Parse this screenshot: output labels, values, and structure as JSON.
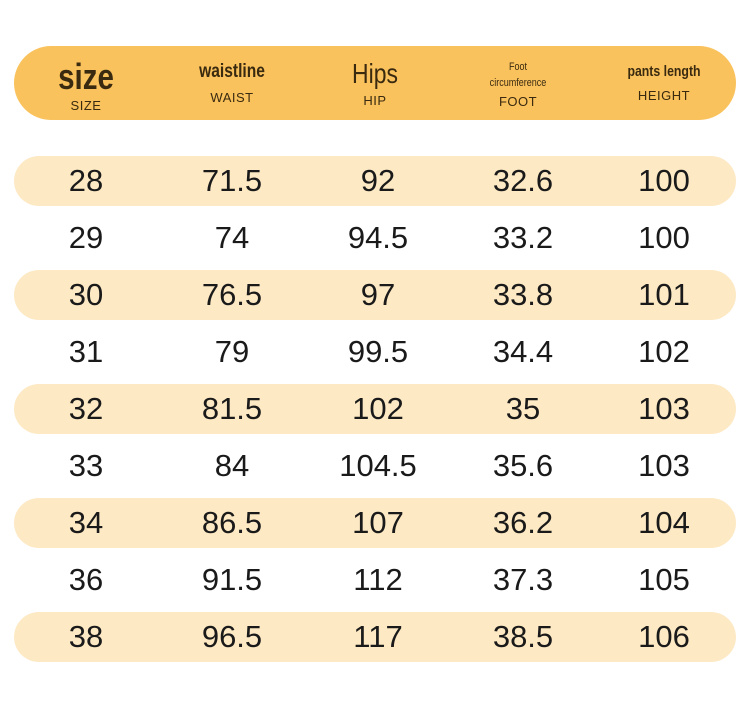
{
  "header": [
    {
      "main": "size",
      "sub": "SIZE"
    },
    {
      "main": "waistline",
      "sub": "WAIST"
    },
    {
      "main": "Hips",
      "sub": "HIP"
    },
    {
      "main_line1": "Foot",
      "main_line2": "circumference",
      "sub": "FOOT"
    },
    {
      "main": "pants length",
      "sub": "HEIGHT"
    }
  ],
  "rows": [
    [
      "28",
      "71.5",
      "92",
      "32.6",
      "100"
    ],
    [
      "29",
      "74",
      "94.5",
      "33.2",
      "100"
    ],
    [
      "30",
      "76.5",
      "97",
      "33.8",
      "101"
    ],
    [
      "31",
      "79",
      "99.5",
      "34.4",
      "102"
    ],
    [
      "32",
      "81.5",
      "102",
      "35",
      "103"
    ],
    [
      "33",
      "84",
      "104.5",
      "35.6",
      "103"
    ],
    [
      "34",
      "86.5",
      "107",
      "36.2",
      "104"
    ],
    [
      "36",
      "91.5",
      "112",
      "37.3",
      "105"
    ],
    [
      "38",
      "96.5",
      "117",
      "38.5",
      "106"
    ]
  ],
  "colors": {
    "header_bg": "#f9c25c",
    "stripe_bg": "#fde9c4",
    "text": "#1a1a1a"
  }
}
